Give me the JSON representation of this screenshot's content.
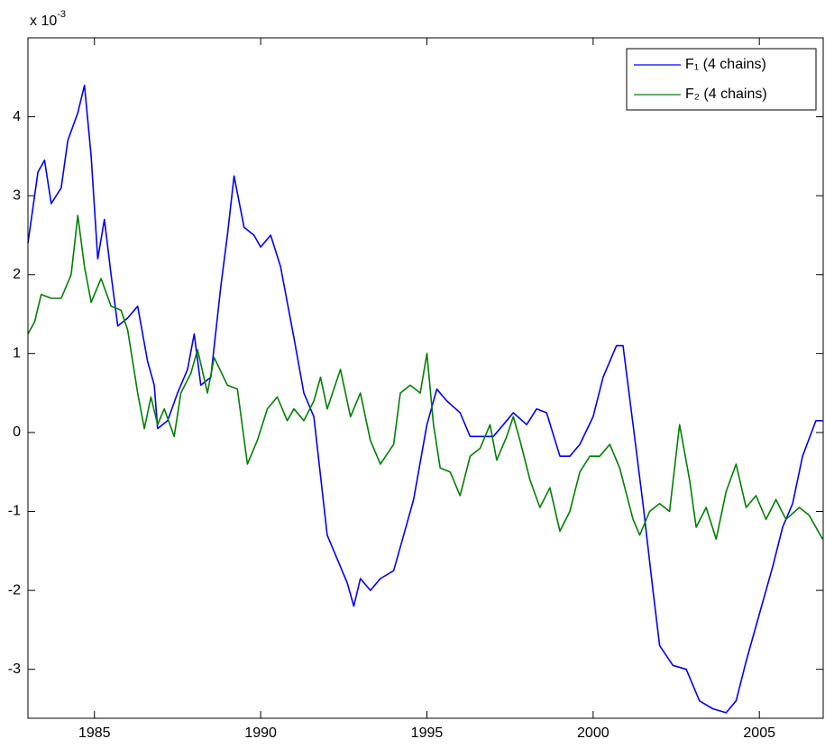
{
  "chart_data": {
    "type": "line",
    "axis_multiplier": {
      "base": "x 10",
      "exponent": "-3"
    },
    "series": [
      {
        "name": "F₁ (4 chains)",
        "color": "#0000ff",
        "x": [
          1983.0,
          1983.3,
          1983.5,
          1983.7,
          1984.0,
          1984.2,
          1984.5,
          1984.7,
          1984.9,
          1985.1,
          1985.3,
          1985.5,
          1985.7,
          1986.0,
          1986.3,
          1986.6,
          1986.8,
          1986.9,
          1987.2,
          1987.5,
          1987.8,
          1988.0,
          1988.2,
          1988.5,
          1988.8,
          1989.0,
          1989.2,
          1989.5,
          1989.8,
          1990.0,
          1990.3,
          1990.6,
          1991.0,
          1991.3,
          1991.6,
          1992.0,
          1992.3,
          1992.6,
          1992.8,
          1993.0,
          1993.3,
          1993.6,
          1994.0,
          1994.3,
          1994.6,
          1995.0,
          1995.3,
          1995.6,
          1996.0,
          1996.3,
          1996.6,
          1997.0,
          1997.3,
          1997.6,
          1998.0,
          1998.3,
          1998.6,
          1999.0,
          1999.3,
          1999.6,
          2000.0,
          2000.3,
          2000.7,
          2000.9,
          2001.2,
          2001.5,
          2001.8,
          2002.0,
          2002.4,
          2002.8,
          2003.2,
          2003.6,
          2004.0,
          2004.3,
          2004.6,
          2005.0,
          2005.4,
          2005.7,
          2006.0,
          2006.3,
          2006.7,
          2006.9
        ],
        "values": [
          2.4,
          3.3,
          3.45,
          2.9,
          3.1,
          3.7,
          4.05,
          4.4,
          3.5,
          2.2,
          2.7,
          2.0,
          1.35,
          1.45,
          1.6,
          0.9,
          0.6,
          0.05,
          0.15,
          0.5,
          0.8,
          1.25,
          0.6,
          0.7,
          1.85,
          2.5,
          3.25,
          2.6,
          2.5,
          2.35,
          2.5,
          2.1,
          1.2,
          0.5,
          0.2,
          -1.3,
          -1.6,
          -1.9,
          -2.2,
          -1.85,
          -2.0,
          -1.85,
          -1.75,
          -1.3,
          -0.85,
          0.1,
          0.55,
          0.4,
          0.25,
          -0.05,
          -0.05,
          -0.05,
          0.1,
          0.25,
          0.1,
          0.3,
          0.25,
          -0.3,
          -0.3,
          -0.15,
          0.2,
          0.7,
          1.1,
          1.1,
          0.1,
          -0.9,
          -2.0,
          -2.7,
          -2.95,
          -3.0,
          -3.4,
          -3.5,
          -3.55,
          -3.4,
          -2.9,
          -2.3,
          -1.7,
          -1.2,
          -0.9,
          -0.3,
          0.15,
          0.15
        ]
      },
      {
        "name": "F₂ (4 chains)",
        "color": "#008000",
        "x": [
          1983.0,
          1983.2,
          1983.4,
          1983.7,
          1984.0,
          1984.3,
          1984.5,
          1984.7,
          1984.9,
          1985.2,
          1985.5,
          1985.8,
          1986.0,
          1986.3,
          1986.5,
          1986.7,
          1986.9,
          1987.1,
          1987.4,
          1987.6,
          1987.9,
          1988.1,
          1988.4,
          1988.6,
          1989.0,
          1989.3,
          1989.6,
          1989.9,
          1990.2,
          1990.5,
          1990.8,
          1991.0,
          1991.3,
          1991.6,
          1991.8,
          1992.0,
          1992.4,
          1992.7,
          1993.0,
          1993.3,
          1993.6,
          1994.0,
          1994.2,
          1994.5,
          1994.8,
          1995.0,
          1995.2,
          1995.4,
          1995.7,
          1996.0,
          1996.3,
          1996.6,
          1996.9,
          1997.1,
          1997.4,
          1997.6,
          1997.8,
          1998.1,
          1998.4,
          1998.7,
          1999.0,
          1999.3,
          1999.6,
          1999.9,
          2000.2,
          2000.5,
          2000.8,
          2001.2,
          2001.4,
          2001.7,
          2002.0,
          2002.3,
          2002.6,
          2002.9,
          2003.1,
          2003.4,
          2003.7,
          2004.0,
          2004.3,
          2004.6,
          2004.9,
          2005.2,
          2005.5,
          2005.8,
          2006.2,
          2006.5,
          2006.9
        ],
        "values": [
          1.25,
          1.4,
          1.75,
          1.7,
          1.7,
          2.0,
          2.75,
          2.1,
          1.65,
          1.95,
          1.6,
          1.55,
          1.3,
          0.5,
          0.05,
          0.45,
          0.1,
          0.3,
          -0.05,
          0.5,
          0.75,
          1.05,
          0.5,
          0.95,
          0.6,
          0.55,
          -0.4,
          -0.1,
          0.3,
          0.45,
          0.15,
          0.3,
          0.15,
          0.4,
          0.7,
          0.3,
          0.8,
          0.2,
          0.5,
          -0.1,
          -0.4,
          -0.15,
          0.5,
          0.6,
          0.5,
          1.0,
          0.1,
          -0.45,
          -0.5,
          -0.8,
          -0.3,
          -0.2,
          0.1,
          -0.35,
          -0.05,
          0.2,
          -0.1,
          -0.6,
          -0.95,
          -0.7,
          -1.25,
          -1.0,
          -0.5,
          -0.3,
          -0.3,
          -0.15,
          -0.45,
          -1.1,
          -1.3,
          -1.0,
          -0.9,
          -1.0,
          0.1,
          -0.6,
          -1.2,
          -0.95,
          -1.35,
          -0.75,
          -0.4,
          -0.95,
          -0.8,
          -1.1,
          -0.85,
          -1.1,
          -0.95,
          -1.05,
          -1.35
        ]
      }
    ],
    "xlim": [
      1983.0,
      2006.92
    ],
    "xticks": [
      1985,
      1990,
      1995,
      2000,
      2005
    ],
    "ylim": [
      -3.62,
      5
    ],
    "yticks": [
      -3,
      -2,
      -1,
      0,
      1,
      2,
      3,
      4
    ],
    "legend": "northeast"
  }
}
